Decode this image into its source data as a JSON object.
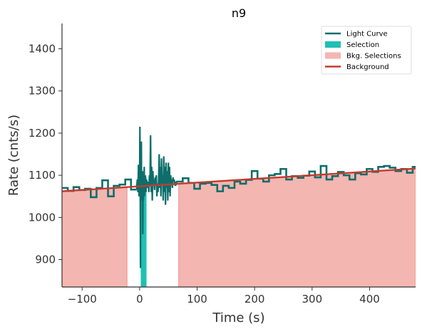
{
  "chart_data": {
    "type": "line",
    "title": "n9",
    "xlabel": "Time (s)",
    "ylabel": "Rate (cnts/s)",
    "xlim": [
      -135,
      480
    ],
    "ylim": [
      835,
      1460
    ],
    "xticks": [
      -100,
      0,
      100,
      200,
      300,
      400
    ],
    "yticks": [
      900,
      1000,
      1100,
      1200,
      1300,
      1400
    ],
    "xtick_labels": [
      "−100",
      "0",
      "100",
      "200",
      "300",
      "400"
    ],
    "ytick_labels": [
      "900",
      "1000",
      "1100",
      "1200",
      "1300",
      "1400"
    ],
    "grid": false,
    "legend_position": "top-right",
    "legend": [
      {
        "label": "Light Curve",
        "kind": "line",
        "color": "#0d6e6b"
      },
      {
        "label": "Selection",
        "kind": "patch",
        "color": "#1fc0b4"
      },
      {
        "label": "Bkg. Selections",
        "kind": "patch",
        "color": "#f4b6b1"
      },
      {
        "label": "Background",
        "kind": "line",
        "color": "#c43b2e"
      }
    ],
    "colors": {
      "light_curve": "#0d6e6b",
      "selection": "#1fc0b4",
      "bkg_selection_fill": "#f4b6b1",
      "bkg_selection_edge": "#ee8d85",
      "background": "#c43b2e"
    },
    "selection": [
      2.0,
      12.0
    ],
    "bkg_selections": [
      [
        -135,
        -22
      ],
      [
        68,
        480
      ]
    ],
    "background_fit": {
      "x": [
        -135,
        480
      ],
      "y": [
        1062,
        1116
      ]
    },
    "light_curve": {
      "coarse_pre": {
        "edges": [
          -135,
          -125,
          -115,
          -105,
          -95,
          -85,
          -75,
          -65,
          -55,
          -45,
          -35,
          -25,
          -15,
          -5
        ],
        "values": [
          1070,
          1063,
          1072,
          1065,
          1068,
          1048,
          1070,
          1088,
          1050,
          1075,
          1078,
          1090,
          1066
        ]
      },
      "fine": {
        "x": [
          -5,
          -4,
          -3,
          -2,
          -1,
          0,
          0.5,
          1,
          1.5,
          2,
          2.5,
          3,
          3.5,
          4,
          4.5,
          5,
          5.5,
          6,
          6.5,
          7,
          7.5,
          8,
          8.5,
          9,
          9.5,
          10,
          11,
          12,
          13,
          14,
          15,
          16,
          17,
          18,
          19,
          20,
          21,
          22,
          23,
          24,
          25,
          26,
          27,
          28,
          29,
          30,
          31,
          32,
          33,
          34,
          35,
          36,
          37,
          38,
          39,
          40,
          41,
          42,
          43,
          44,
          45,
          46,
          47,
          48,
          49,
          50,
          51,
          52,
          53,
          54,
          55,
          56,
          57,
          58,
          59,
          60,
          61,
          62,
          63,
          64,
          65
        ],
        "y": [
          1075,
          1090,
          1060,
          1125,
          1050,
          1100,
          1215,
          1080,
          880,
          1130,
          1060,
          1180,
          1040,
          1100,
          1070,
          1110,
          960,
          1090,
          1040,
          1100,
          1075,
          1120,
          1050,
          1090,
          1070,
          1100,
          1060,
          1090,
          1080,
          1070,
          1085,
          1060,
          1100,
          1075,
          1195,
          1060,
          1120,
          1040,
          1110,
          1080,
          1090,
          1065,
          1095,
          1075,
          1100,
          1050,
          1080,
          1060,
          1090,
          1150,
          1070,
          1120,
          1050,
          1140,
          1080,
          1100,
          1040,
          1145,
          1060,
          1120,
          1030,
          1130,
          1070,
          1110,
          1040,
          1130,
          1060,
          1120,
          1050,
          1100,
          1080,
          1090,
          1070,
          1095,
          1085,
          1090,
          1080,
          1075,
          1085,
          1080,
          1083
        ]
      },
      "coarse_post": {
        "edges": [
          65,
          75,
          85,
          95,
          105,
          115,
          125,
          135,
          145,
          155,
          165,
          175,
          185,
          195,
          205,
          215,
          225,
          235,
          245,
          255,
          265,
          275,
          285,
          295,
          305,
          315,
          325,
          335,
          345,
          355,
          365,
          375,
          385,
          395,
          405,
          415,
          425,
          435,
          445,
          455,
          465,
          475,
          480
        ],
        "values": [
          1085,
          1093,
          1082,
          1068,
          1080,
          1082,
          1077,
          1062,
          1075,
          1070,
          1085,
          1080,
          1089,
          1110,
          1092,
          1085,
          1100,
          1103,
          1115,
          1090,
          1098,
          1094,
          1099,
          1109,
          1095,
          1122,
          1090,
          1098,
          1108,
          1100,
          1090,
          1105,
          1102,
          1115,
          1108,
          1120,
          1122,
          1118,
          1110,
          1115,
          1106,
          1120
        ]
      }
    }
  }
}
